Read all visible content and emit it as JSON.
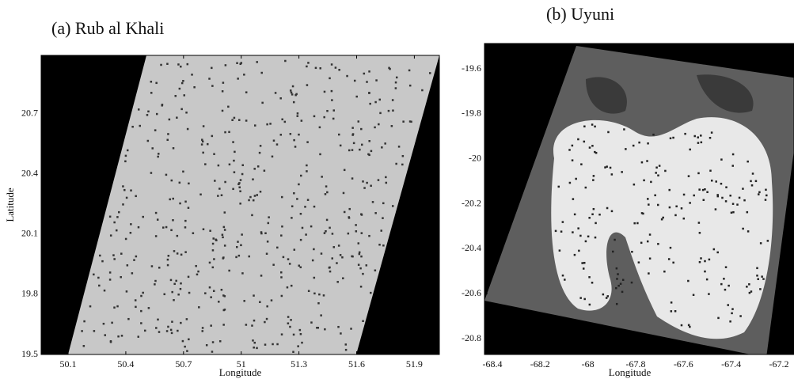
{
  "chart_data": [
    {
      "type": "map",
      "title": "(a) Rub al Khali",
      "xlabel": "Longitude",
      "ylabel": "Latitude",
      "xlim": [
        49.96,
        52.03
      ],
      "ylim": [
        19.5,
        20.99
      ],
      "xticks": [
        50.1,
        50.4,
        50.7,
        51,
        51.3,
        51.6,
        51.9
      ],
      "yticks": [
        19.5,
        19.8,
        20.1,
        20.4,
        20.7
      ]
    },
    {
      "type": "map",
      "title": "(b) Uyuni",
      "xlabel": "Longitude",
      "xlim": [
        -68.433,
        -67.137
      ],
      "ylim": [
        -20.87,
        -19.487
      ],
      "xticks": [
        -68.4,
        -68.2,
        -68,
        -67.8,
        -67.6,
        -67.4,
        -67.2
      ],
      "yticks": [
        -19.6,
        -19.8,
        -20,
        -20.2,
        -20.4,
        -20.6,
        -20.8
      ]
    }
  ]
}
